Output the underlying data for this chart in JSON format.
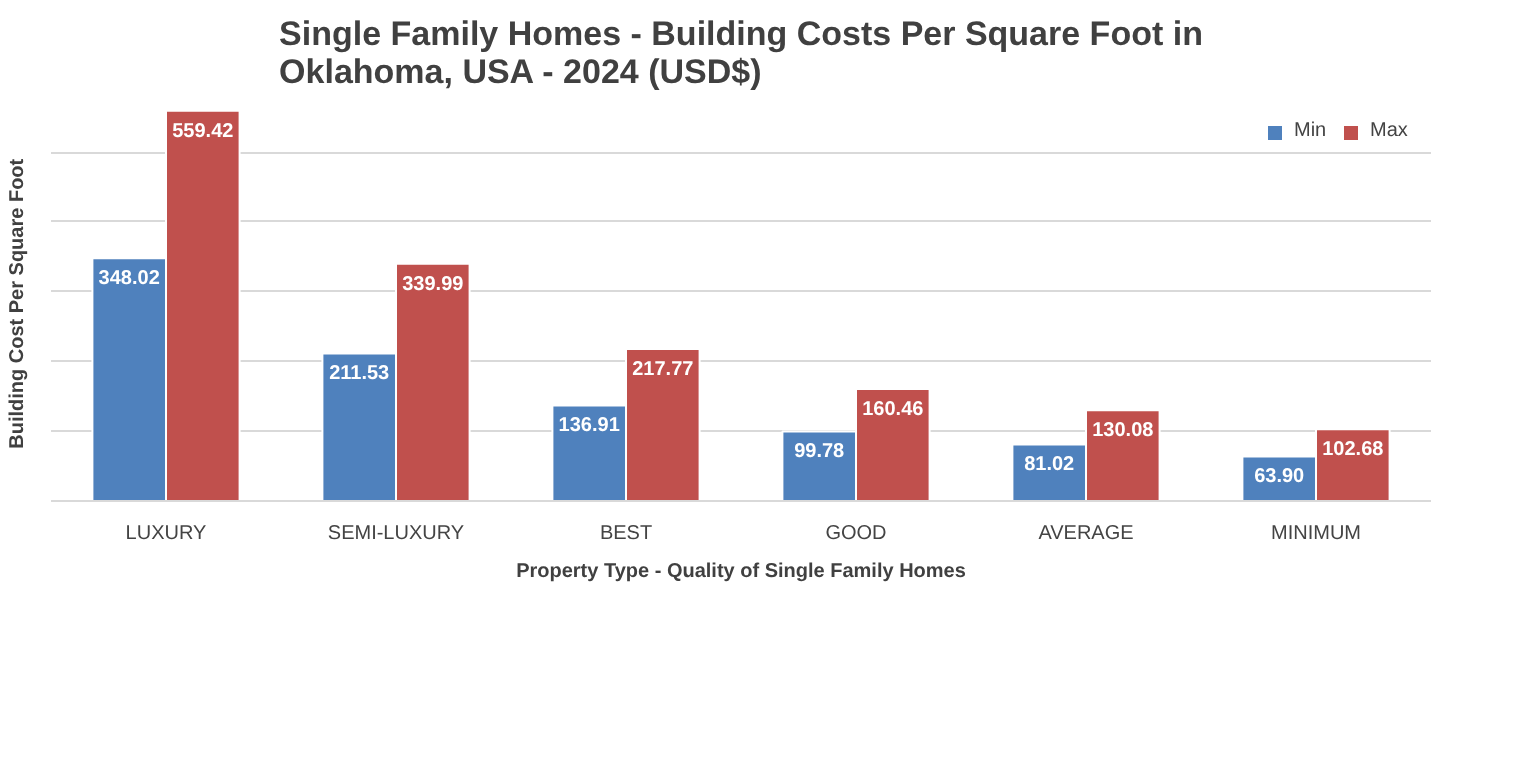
{
  "chart_data": {
    "type": "bar",
    "title": "Single Family Homes - Building Costs Per Square Foot in Oklahoma, USA - 2024 (USD$)",
    "xlabel": "Property Type - Quality of Single Family Homes",
    "ylabel": "Building Cost  Per Square Foot",
    "categories": [
      "LUXURY",
      "SEMI-LUXURY",
      "BEST",
      "GOOD",
      "AVERAGE",
      "MINIMUM"
    ],
    "series": [
      {
        "name": "Min",
        "color": "#4f81bd",
        "values": [
          348.02,
          211.53,
          136.91,
          99.78,
          81.02,
          63.9
        ],
        "value_labels": [
          "348.02",
          "211.53",
          "136.91",
          "99.78",
          "81.02",
          "63.90"
        ]
      },
      {
        "name": "Max",
        "color": "#c0504d",
        "values": [
          559.42,
          339.99,
          217.77,
          160.46,
          130.08,
          102.68
        ],
        "value_labels": [
          "559.42",
          "339.99",
          "217.77",
          "160.46",
          "130.08",
          "102.68"
        ]
      }
    ],
    "yticks": [
      {
        "value": 0,
        "label": null
      },
      {
        "value": 100,
        "label": null
      },
      {
        "value": 200,
        "label": null
      },
      {
        "value": 300,
        "label": null
      },
      {
        "value": 400,
        "label": null
      },
      {
        "value": 500,
        "label": null
      }
    ],
    "tick_labels": "x",
    "grid": "y",
    "legend": "top right"
  }
}
